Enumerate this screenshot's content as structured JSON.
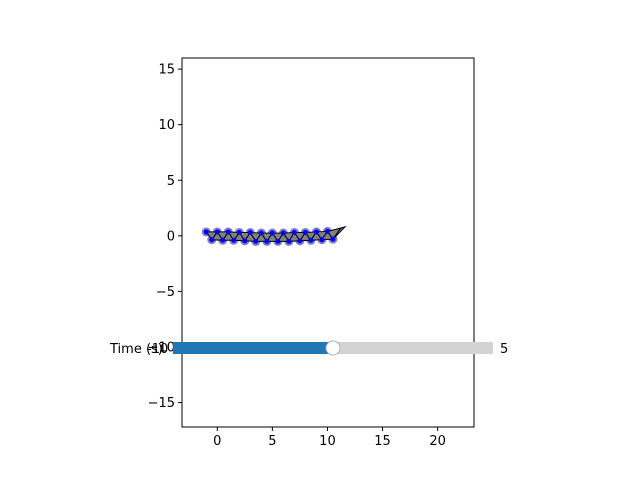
{
  "chart_data": {
    "type": "scatter",
    "title": "",
    "xlabel": "",
    "ylabel": "",
    "xlim": [
      -3.2,
      23.3
    ],
    "ylim": [
      -17.2,
      16.0
    ],
    "xticks": [
      0,
      5,
      10,
      15,
      20
    ],
    "yticks": [
      -15,
      -10,
      -5,
      0,
      5,
      10,
      15
    ],
    "x_tick_labels": [
      "0",
      "5",
      "10",
      "15",
      "20"
    ],
    "y_tick_labels": [
      "−15",
      "−10",
      "−5",
      "0",
      "5",
      "10",
      "15"
    ],
    "nodes_top": [
      [
        -1.0,
        0.35
      ],
      [
        0.0,
        0.35
      ],
      [
        1.0,
        0.35
      ],
      [
        2.0,
        0.3
      ],
      [
        3.0,
        0.3
      ],
      [
        4.0,
        0.25
      ],
      [
        5.0,
        0.25
      ],
      [
        6.0,
        0.25
      ],
      [
        7.0,
        0.3
      ],
      [
        8.0,
        0.3
      ],
      [
        9.0,
        0.35
      ],
      [
        10.0,
        0.4
      ]
    ],
    "nodes_bottom": [
      [
        -0.5,
        -0.35
      ],
      [
        0.5,
        -0.4
      ],
      [
        1.5,
        -0.4
      ],
      [
        2.5,
        -0.45
      ],
      [
        3.5,
        -0.5
      ],
      [
        4.5,
        -0.5
      ],
      [
        5.5,
        -0.5
      ],
      [
        6.5,
        -0.5
      ],
      [
        7.5,
        -0.45
      ],
      [
        8.5,
        -0.4
      ],
      [
        9.5,
        -0.35
      ],
      [
        10.5,
        -0.3
      ]
    ],
    "wing_tip": [
      [
        10.5,
        -0.3
      ],
      [
        11.2,
        0.7
      ],
      [
        11.6,
        0.8
      ]
    ],
    "colors": {
      "node_fill": "#0000ff",
      "node_halo": "#7f7fbf",
      "element_fill": "#808080",
      "element_edge": "#000000"
    }
  },
  "slider": {
    "label": "Time (s)",
    "value_text": "5",
    "min_text": "-10",
    "fraction": 0.5,
    "colors": {
      "filled": "#1f77b4",
      "track": "#d3d3d3",
      "handle": "#ffffff"
    }
  }
}
